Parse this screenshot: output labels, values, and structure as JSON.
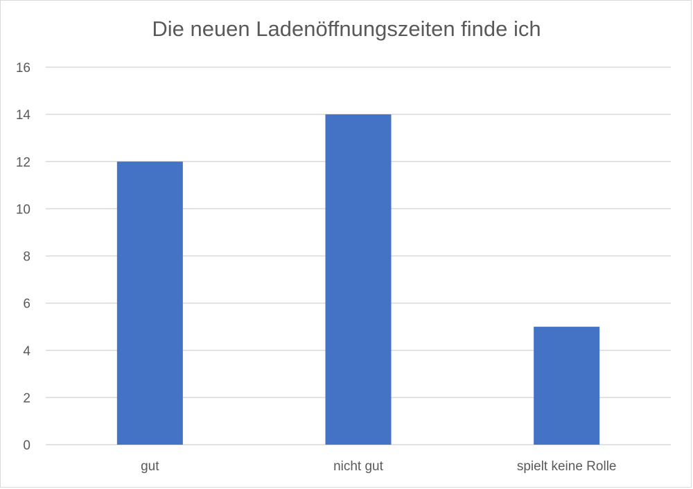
{
  "chart_data": {
    "type": "bar",
    "title": "Die neuen Ladenöffnungszeiten finde ich",
    "categories": [
      "gut",
      "nicht gut",
      "spielt keine Rolle"
    ],
    "values": [
      12,
      14,
      5
    ],
    "ylim": [
      0,
      16
    ],
    "yticks": [
      "0",
      "2",
      "4",
      "6",
      "8",
      "10",
      "12",
      "14",
      "16"
    ],
    "grid": true,
    "legend": "none",
    "colors": {
      "bar": "#4472c4",
      "grid": "#d9d9d9",
      "text": "#595959"
    }
  }
}
